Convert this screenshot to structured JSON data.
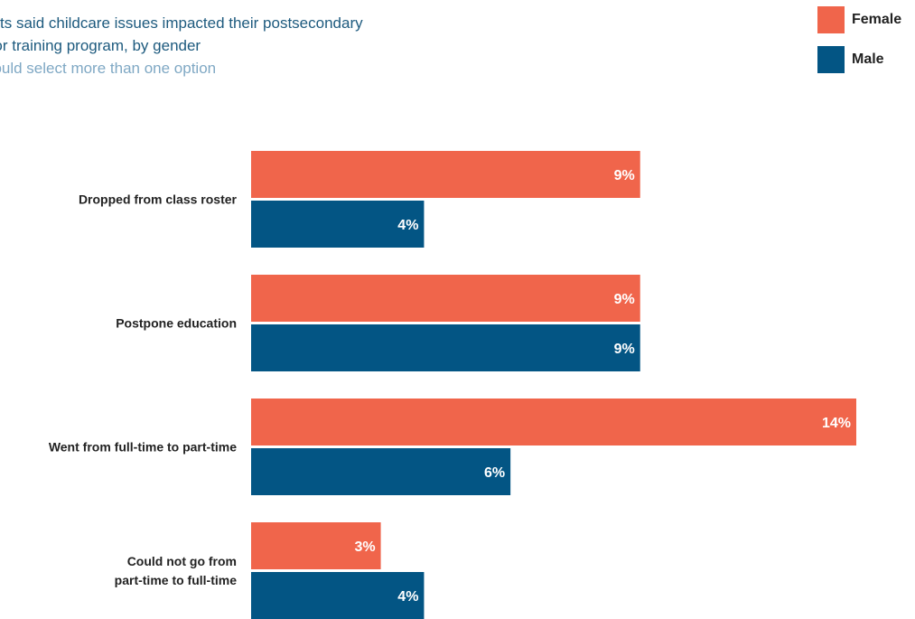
{
  "title_lines": [
    "arents said childcare issues impacted their postsecondary",
    "ion or training program, by gender"
  ],
  "subtitle": "ts could select more than one option",
  "colors": {
    "female": "#f0654b",
    "male": "#035584"
  },
  "legend": [
    {
      "label": "Female",
      "color": "#f0654b"
    },
    {
      "label": "Male",
      "color": "#035584"
    }
  ],
  "chart_data": {
    "type": "bar",
    "orientation": "horizontal",
    "categories": [
      [
        "Dropped from class roster"
      ],
      [
        "Postpone education"
      ],
      [
        "Went from full-time to part-time"
      ],
      [
        "Could not go from",
        "part-time to full-time"
      ]
    ],
    "series": [
      {
        "name": "Female",
        "values": [
          9,
          9,
          14,
          3
        ],
        "labels": [
          "9%",
          "9%",
          "14%",
          "3%"
        ]
      },
      {
        "name": "Male",
        "values": [
          4,
          9,
          6,
          4
        ],
        "labels": [
          "4%",
          "9%",
          "6%",
          "4%"
        ]
      }
    ],
    "unit": "%",
    "xlim": [
      0,
      14
    ],
    "grid": false,
    "legend_position": "top-right"
  }
}
